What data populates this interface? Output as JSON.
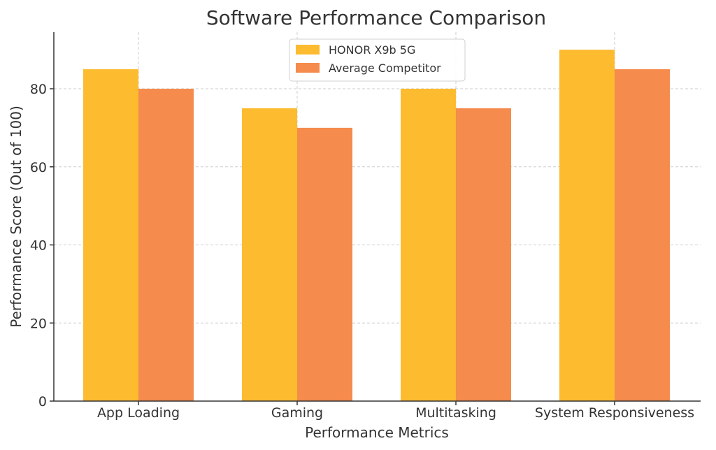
{
  "chart_data": {
    "type": "bar",
    "title": "Software Performance Comparison",
    "xlabel": "Performance Metrics",
    "ylabel": "Performance Score (Out of 100)",
    "categories": [
      "App Loading",
      "Gaming",
      "Multitasking",
      "System Responsiveness"
    ],
    "series": [
      {
        "name": "HONOR X9b 5G",
        "values": [
          85,
          75,
          80,
          90
        ],
        "color": "#FDBB30"
      },
      {
        "name": "Average Competitor",
        "values": [
          80,
          70,
          75,
          85
        ],
        "color": "#F58B4C"
      }
    ],
    "ylim": [
      0,
      94.5
    ],
    "yticks": [
      0,
      20,
      40,
      60,
      80
    ],
    "grid": true,
    "legend_position": "top-center"
  }
}
